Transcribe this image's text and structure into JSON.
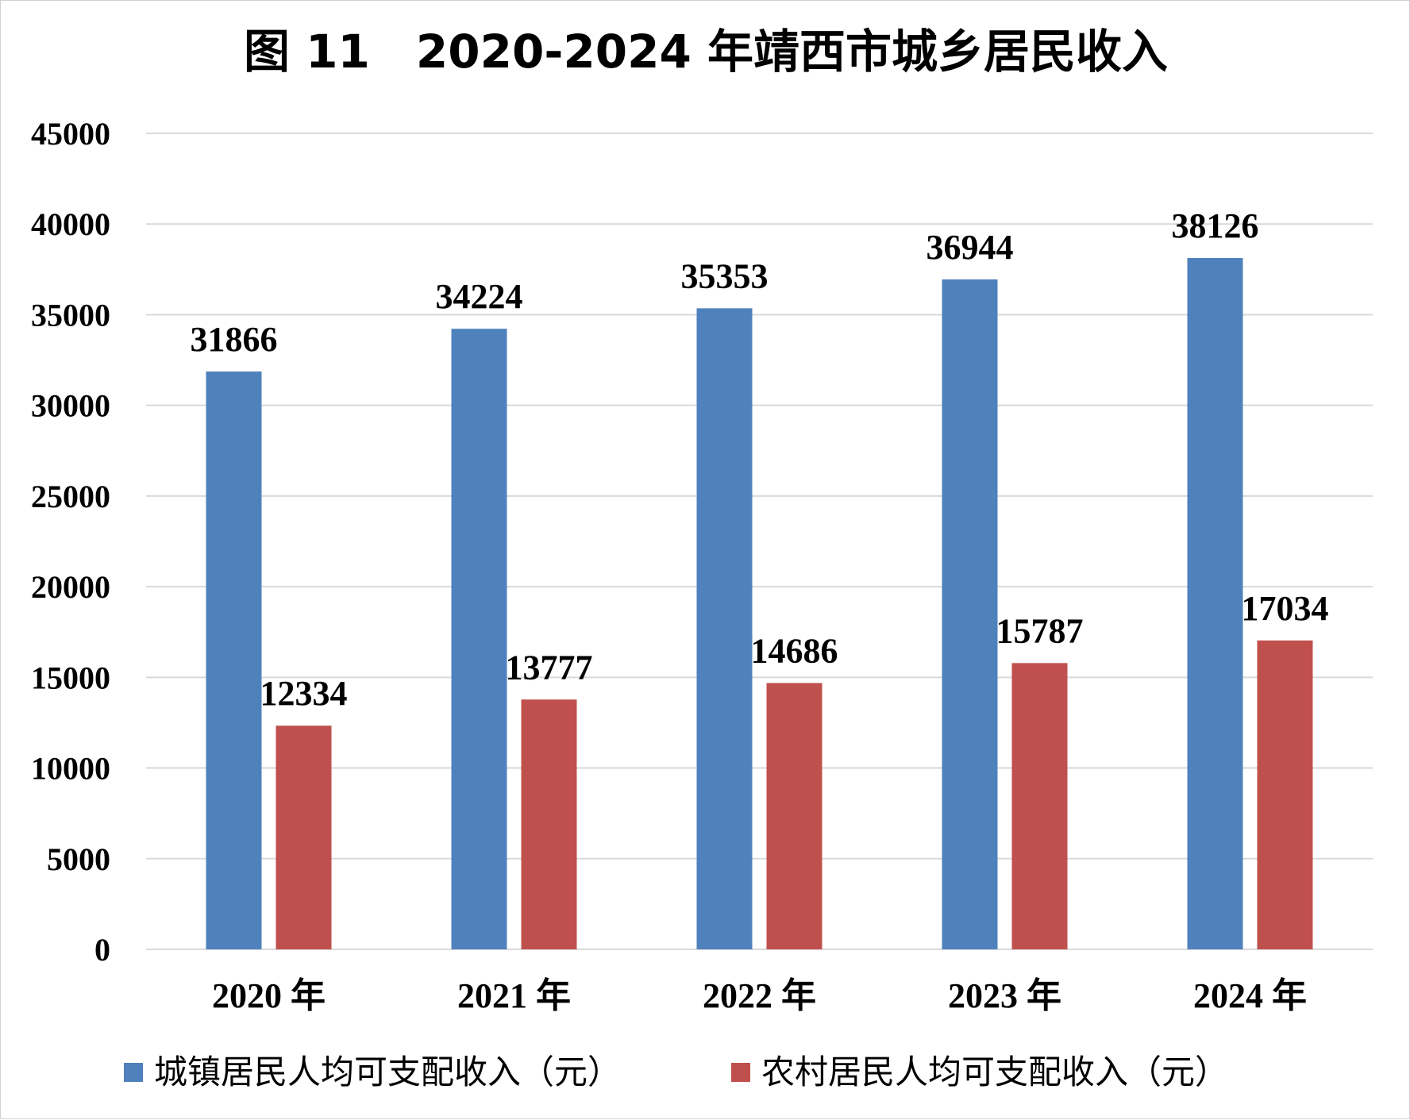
{
  "chart_data": {
    "type": "bar",
    "title": "图 11　2020-2024 年靖西市城乡居民收入",
    "categories": [
      "2020 年",
      "2021 年",
      "2022 年",
      "2023 年",
      "2024 年"
    ],
    "series": [
      {
        "name": "城镇居民人均可支配收入（元）",
        "color": "#4F81BD",
        "values": [
          31866,
          34224,
          35353,
          36944,
          38126
        ]
      },
      {
        "name": "农村居民人均可支配收入（元）",
        "color": "#C0504D",
        "values": [
          12334,
          13777,
          14686,
          15787,
          17034
        ]
      }
    ],
    "ylim": [
      0,
      45000
    ],
    "yticks": [
      "0",
      "5000",
      "10000",
      "15000",
      "20000",
      "25000",
      "30000",
      "35000",
      "40000",
      "45000"
    ],
    "grid": true,
    "legend": "bottom",
    "data_labels": true
  }
}
